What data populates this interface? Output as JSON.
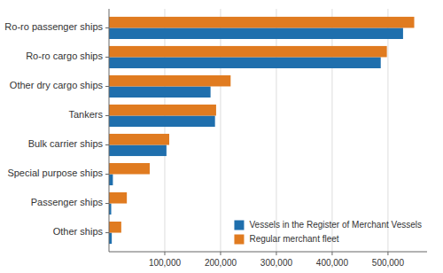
{
  "chart_data": {
    "type": "bar",
    "orientation": "horizontal",
    "categories": [
      "Other ships",
      "Passenger ships",
      "Special purpose ships",
      "Bulk carrier ships",
      "Tankers",
      "Other dry cargo ships",
      "Ro-ro cargo ships",
      "Ro-ro passenger ships"
    ],
    "series": [
      {
        "name": "Vessels in the Register of Merchant Vessels",
        "color": "#1f6fad",
        "values": [
          5000,
          4000,
          7000,
          103000,
          190000,
          182000,
          487000,
          527000
        ]
      },
      {
        "name": "Regular merchant fleet",
        "color": "#e07b20",
        "values": [
          22000,
          32000,
          73000,
          108000,
          192000,
          218000,
          498000,
          547000
        ]
      }
    ],
    "xlim": [
      0,
      570000
    ],
    "xticks": [
      {
        "value": 100000,
        "label": "100,000"
      },
      {
        "value": 200000,
        "label": "200,000"
      },
      {
        "value": 300000,
        "label": "300,000"
      },
      {
        "value": 400000,
        "label": "400,000"
      },
      {
        "value": 500000,
        "label": "500,000"
      }
    ],
    "grid": true,
    "legend": "lower right"
  }
}
